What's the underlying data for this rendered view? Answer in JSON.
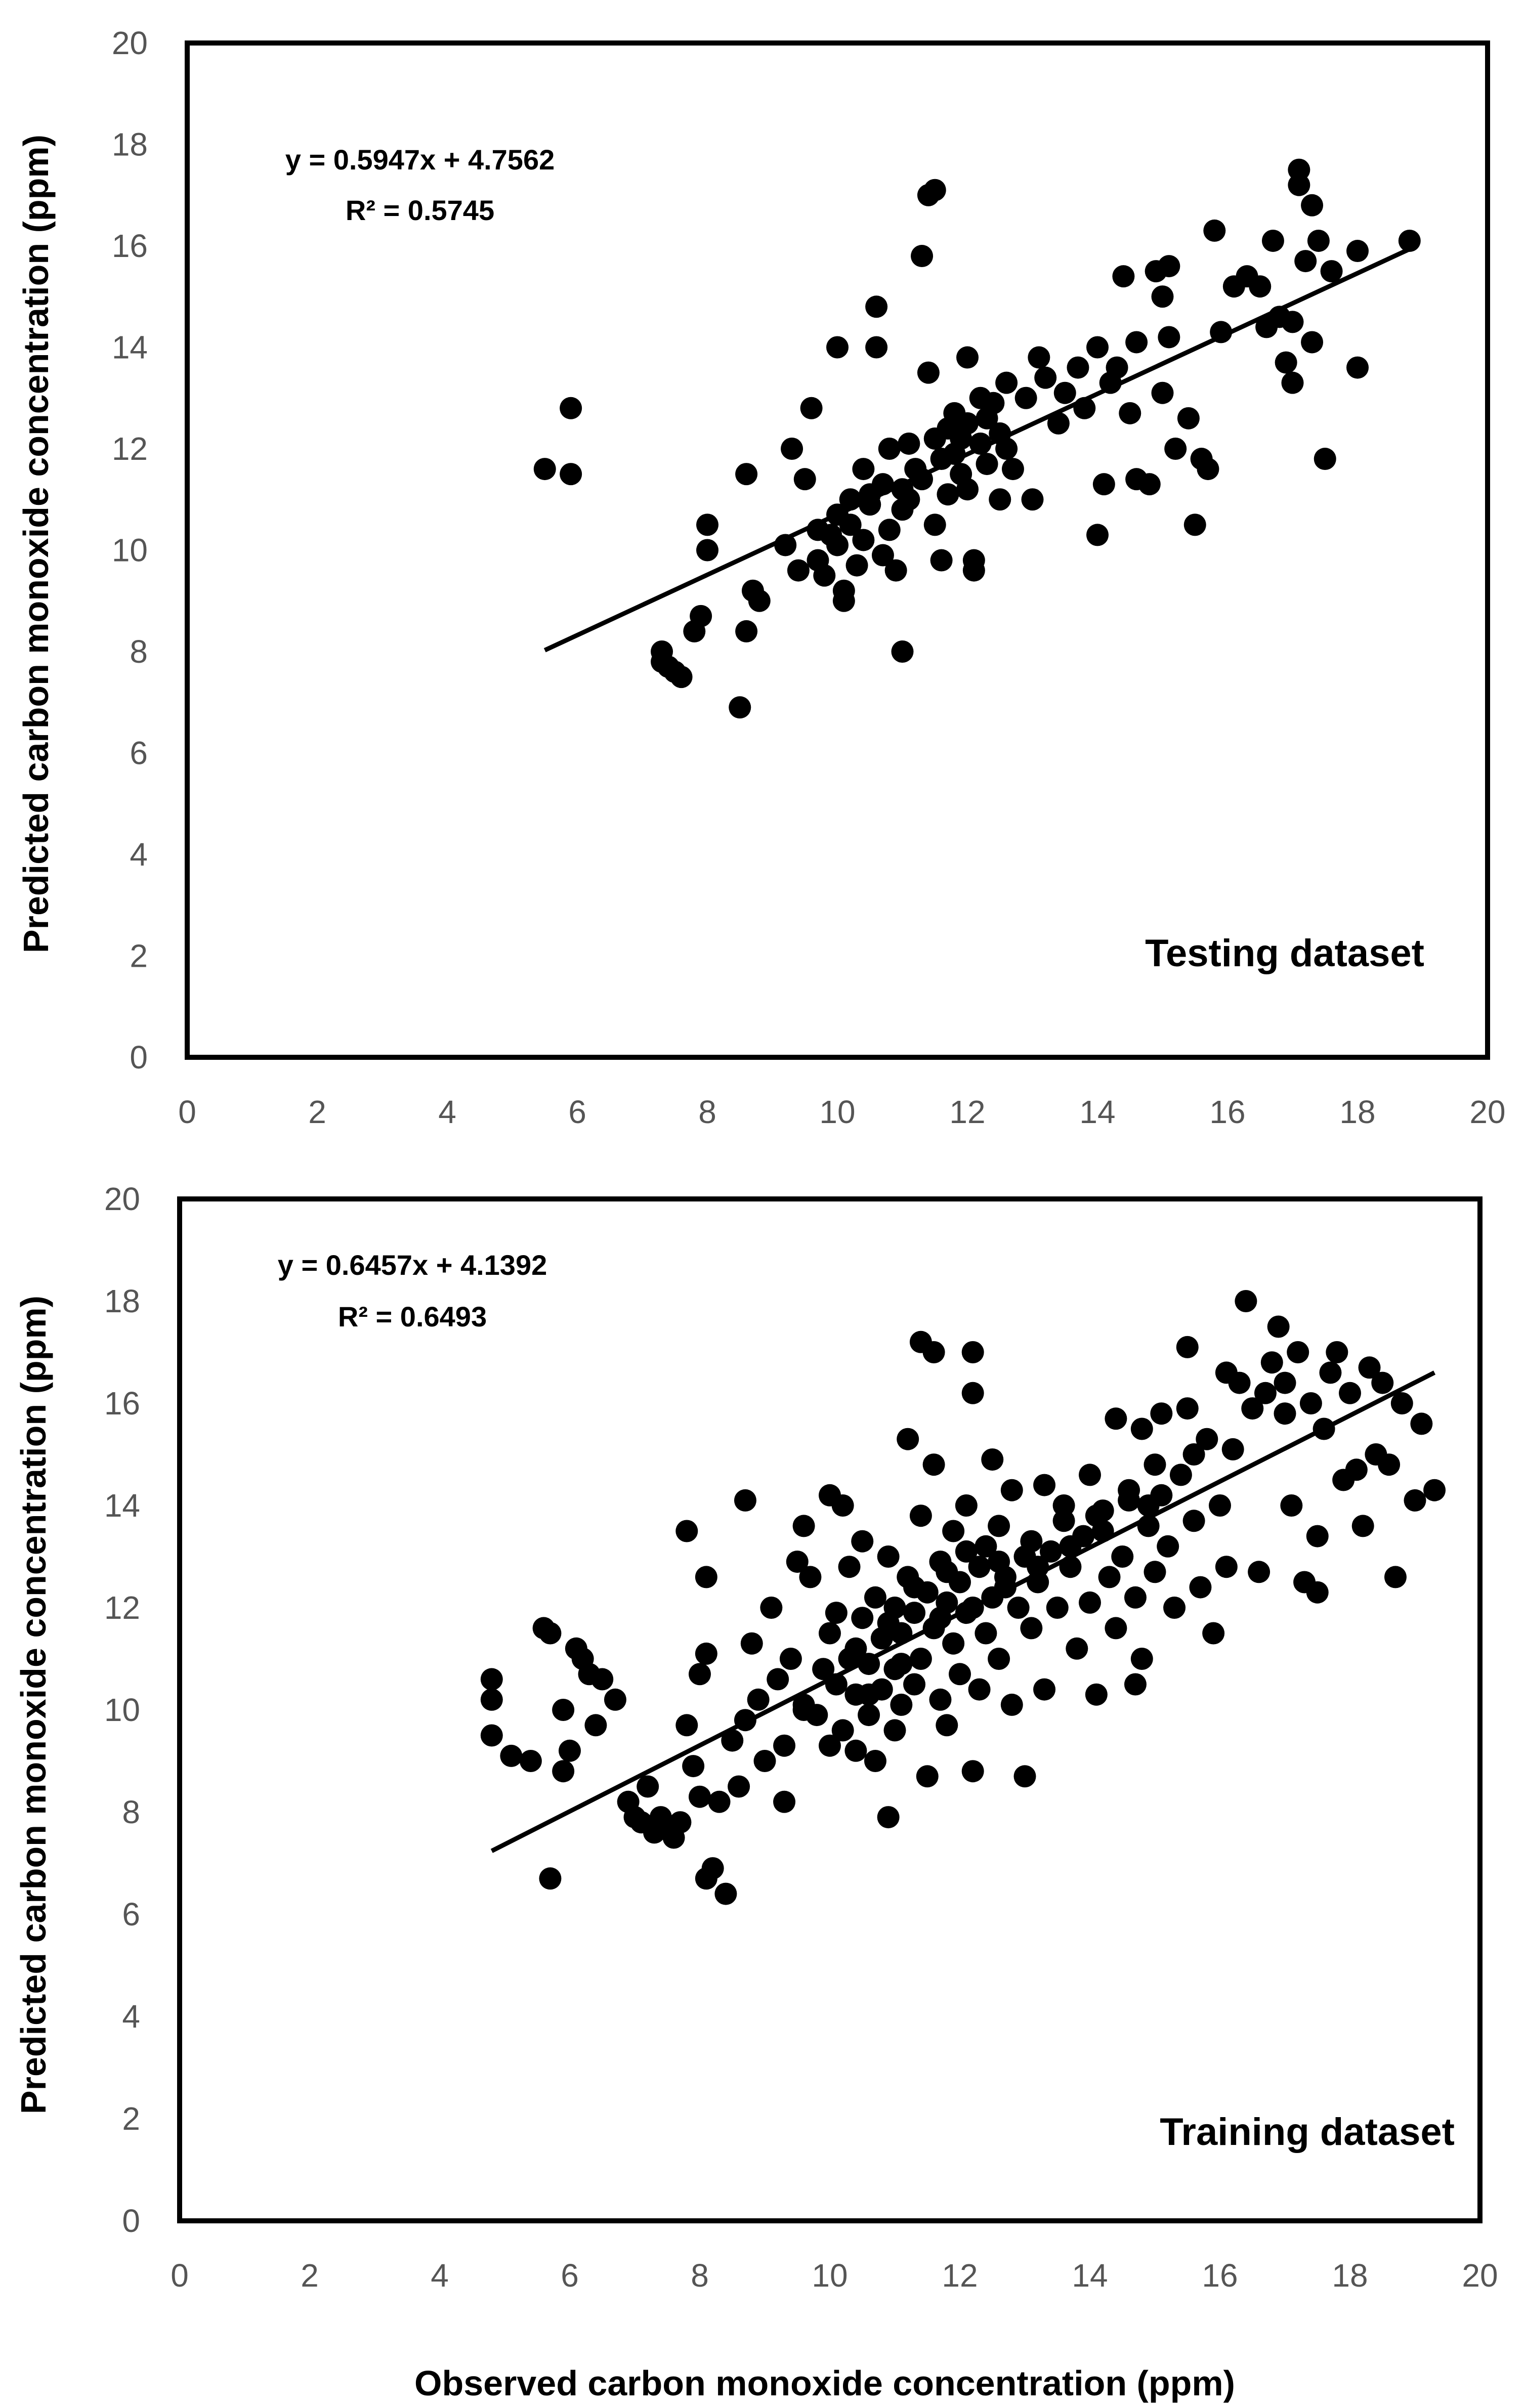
{
  "chart_data": [
    {
      "type": "scatter",
      "title": "",
      "dataset_label": "Testing dataset",
      "xlabel": "",
      "ylabel": "Predicted carbon monoxide concentration (ppm)",
      "xlim": [
        0,
        20
      ],
      "ylim": [
        0,
        20
      ],
      "x_ticks": [
        "0",
        "2",
        "4",
        "6",
        "8",
        "10",
        "12",
        "14",
        "16",
        "18",
        "20"
      ],
      "y_ticks": [
        "0",
        "2",
        "4",
        "6",
        "8",
        "10",
        "12",
        "14",
        "16",
        "18",
        "20"
      ],
      "trendline": {
        "slope": 0.5947,
        "intercept": 4.7562,
        "x_range": [
          5.5,
          18.8
        ]
      },
      "equation": "y = 0.5947x + 4.7562",
      "r2": "R² = 0.5745",
      "points": [
        [
          5.5,
          11.6
        ],
        [
          5.9,
          12.8
        ],
        [
          5.9,
          11.5
        ],
        [
          7.3,
          8.0
        ],
        [
          7.3,
          7.8
        ],
        [
          7.4,
          7.7
        ],
        [
          7.5,
          7.6
        ],
        [
          7.6,
          7.5
        ],
        [
          7.8,
          8.4
        ],
        [
          7.9,
          8.7
        ],
        [
          8.0,
          10.5
        ],
        [
          8.0,
          10.0
        ],
        [
          8.5,
          6.9
        ],
        [
          8.6,
          8.4
        ],
        [
          8.6,
          11.5
        ],
        [
          8.7,
          9.2
        ],
        [
          8.8,
          9.0
        ],
        [
          9.2,
          10.1
        ],
        [
          9.3,
          12.0
        ],
        [
          9.4,
          9.6
        ],
        [
          9.5,
          11.4
        ],
        [
          9.6,
          12.8
        ],
        [
          9.7,
          9.8
        ],
        [
          9.7,
          10.4
        ],
        [
          9.8,
          9.5
        ],
        [
          9.9,
          10.3
        ],
        [
          10.0,
          14.0
        ],
        [
          10.0,
          10.7
        ],
        [
          10.0,
          10.1
        ],
        [
          10.1,
          9.2
        ],
        [
          10.1,
          9.0
        ],
        [
          10.2,
          11.0
        ],
        [
          10.2,
          10.5
        ],
        [
          10.3,
          9.7
        ],
        [
          10.4,
          11.6
        ],
        [
          10.4,
          10.2
        ],
        [
          10.5,
          10.9
        ],
        [
          10.5,
          11.1
        ],
        [
          10.6,
          14.8
        ],
        [
          10.6,
          14.0
        ],
        [
          10.7,
          11.3
        ],
        [
          10.7,
          9.9
        ],
        [
          10.8,
          12.0
        ],
        [
          10.8,
          10.4
        ],
        [
          10.9,
          9.6
        ],
        [
          11.0,
          8.0
        ],
        [
          11.0,
          11.2
        ],
        [
          11.0,
          10.8
        ],
        [
          11.1,
          12.1
        ],
        [
          11.1,
          11.0
        ],
        [
          11.2,
          11.6
        ],
        [
          11.3,
          15.8
        ],
        [
          11.3,
          11.4
        ],
        [
          11.4,
          17.0
        ],
        [
          11.4,
          13.5
        ],
        [
          11.5,
          17.1
        ],
        [
          11.5,
          12.2
        ],
        [
          11.5,
          10.5
        ],
        [
          11.6,
          9.8
        ],
        [
          11.6,
          11.8
        ],
        [
          11.7,
          12.4
        ],
        [
          11.7,
          11.1
        ],
        [
          11.8,
          12.7
        ],
        [
          11.8,
          11.9
        ],
        [
          11.9,
          12.2
        ],
        [
          11.9,
          11.5
        ],
        [
          12.0,
          13.8
        ],
        [
          12.0,
          12.5
        ],
        [
          12.0,
          11.2
        ],
        [
          12.1,
          9.6
        ],
        [
          12.1,
          9.8
        ],
        [
          12.2,
          13.0
        ],
        [
          12.2,
          12.1
        ],
        [
          12.3,
          12.6
        ],
        [
          12.3,
          11.7
        ],
        [
          12.4,
          12.9
        ],
        [
          12.5,
          12.3
        ],
        [
          12.5,
          11.0
        ],
        [
          12.6,
          13.3
        ],
        [
          12.6,
          12.0
        ],
        [
          12.7,
          11.6
        ],
        [
          12.9,
          13.0
        ],
        [
          13.0,
          11.0
        ],
        [
          13.1,
          13.8
        ],
        [
          13.2,
          13.4
        ],
        [
          13.4,
          12.5
        ],
        [
          13.5,
          13.1
        ],
        [
          13.7,
          13.6
        ],
        [
          13.8,
          12.8
        ],
        [
          14.0,
          14.0
        ],
        [
          14.0,
          10.3
        ],
        [
          14.1,
          11.3
        ],
        [
          14.2,
          13.3
        ],
        [
          14.3,
          13.6
        ],
        [
          14.4,
          15.4
        ],
        [
          14.5,
          12.7
        ],
        [
          14.6,
          14.1
        ],
        [
          14.6,
          11.4
        ],
        [
          14.8,
          11.3
        ],
        [
          14.9,
          15.5
        ],
        [
          15.0,
          15.0
        ],
        [
          15.0,
          13.1
        ],
        [
          15.1,
          15.6
        ],
        [
          15.1,
          14.2
        ],
        [
          15.2,
          12.0
        ],
        [
          15.4,
          12.6
        ],
        [
          15.5,
          10.5
        ],
        [
          15.6,
          11.8
        ],
        [
          15.7,
          11.6
        ],
        [
          15.8,
          16.3
        ],
        [
          15.9,
          14.3
        ],
        [
          16.1,
          15.2
        ],
        [
          16.3,
          15.4
        ],
        [
          16.5,
          15.2
        ],
        [
          16.6,
          14.4
        ],
        [
          16.7,
          16.1
        ],
        [
          16.8,
          14.6
        ],
        [
          16.9,
          13.7
        ],
        [
          17.0,
          14.5
        ],
        [
          17.0,
          13.3
        ],
        [
          17.1,
          17.5
        ],
        [
          17.1,
          17.2
        ],
        [
          17.2,
          15.7
        ],
        [
          17.3,
          16.8
        ],
        [
          17.3,
          14.1
        ],
        [
          17.4,
          16.1
        ],
        [
          17.5,
          11.8
        ],
        [
          17.6,
          15.5
        ],
        [
          18.0,
          15.9
        ],
        [
          18.0,
          13.6
        ],
        [
          18.8,
          16.1
        ]
      ]
    },
    {
      "type": "scatter",
      "title": "",
      "dataset_label": "Training dataset",
      "xlabel": "Observed carbon monoxide concentration (ppm)",
      "ylabel": "Predicted carbon monoxide concentration (ppm)",
      "xlim": [
        0,
        20
      ],
      "ylim": [
        0,
        20
      ],
      "x_ticks": [
        "0",
        "2",
        "4",
        "6",
        "8",
        "10",
        "12",
        "14",
        "16",
        "18",
        "20"
      ],
      "y_ticks": [
        "0",
        "2",
        "4",
        "6",
        "8",
        "10",
        "12",
        "14",
        "16",
        "18",
        "20"
      ],
      "trendline": {
        "slope": 0.6457,
        "intercept": 4.1392,
        "x_range": [
          4.8,
          19.3
        ]
      },
      "equation": "y = 0.6457x + 4.1392",
      "r2": "R² = 0.6493",
      "points": [
        [
          4.8,
          10.6
        ],
        [
          4.8,
          10.2
        ],
        [
          4.8,
          9.5
        ],
        [
          5.1,
          9.1
        ],
        [
          5.4,
          9.0
        ],
        [
          5.6,
          11.6
        ],
        [
          5.7,
          11.5
        ],
        [
          5.7,
          6.7
        ],
        [
          5.9,
          10.0
        ],
        [
          5.9,
          8.8
        ],
        [
          6.0,
          9.2
        ],
        [
          6.1,
          11.2
        ],
        [
          6.2,
          11.0
        ],
        [
          6.3,
          10.7
        ],
        [
          6.4,
          9.7
        ],
        [
          6.5,
          10.6
        ],
        [
          6.7,
          10.2
        ],
        [
          6.9,
          8.2
        ],
        [
          7.0,
          7.9
        ],
        [
          7.1,
          7.8
        ],
        [
          7.2,
          8.5
        ],
        [
          7.3,
          7.6
        ],
        [
          7.4,
          7.9
        ],
        [
          7.5,
          7.7
        ],
        [
          7.6,
          7.5
        ],
        [
          7.7,
          7.8
        ],
        [
          7.8,
          13.5
        ],
        [
          7.8,
          9.7
        ],
        [
          7.9,
          8.9
        ],
        [
          8.0,
          10.7
        ],
        [
          8.0,
          8.3
        ],
        [
          8.1,
          11.1
        ],
        [
          8.1,
          12.6
        ],
        [
          8.1,
          6.7
        ],
        [
          8.2,
          6.9
        ],
        [
          8.3,
          8.2
        ],
        [
          8.4,
          6.4
        ],
        [
          8.5,
          9.4
        ],
        [
          8.6,
          8.5
        ],
        [
          8.7,
          14.1
        ],
        [
          8.7,
          9.8
        ],
        [
          8.8,
          11.3
        ],
        [
          8.9,
          10.2
        ],
        [
          9.0,
          9.0
        ],
        [
          9.1,
          12.0
        ],
        [
          9.2,
          10.6
        ],
        [
          9.3,
          9.3
        ],
        [
          9.3,
          8.2
        ],
        [
          9.4,
          11.0
        ],
        [
          9.5,
          12.9
        ],
        [
          9.6,
          13.6
        ],
        [
          9.6,
          10.1
        ],
        [
          9.7,
          12.6
        ],
        [
          9.8,
          9.9
        ],
        [
          9.9,
          10.8
        ],
        [
          10.0,
          14.2
        ],
        [
          10.0,
          11.5
        ],
        [
          10.0,
          9.3
        ],
        [
          10.1,
          11.9
        ],
        [
          10.1,
          10.5
        ],
        [
          10.2,
          14.0
        ],
        [
          10.2,
          9.6
        ],
        [
          10.3,
          12.8
        ],
        [
          10.3,
          11.0
        ],
        [
          10.4,
          10.3
        ],
        [
          10.4,
          9.2
        ],
        [
          10.5,
          13.3
        ],
        [
          10.5,
          11.8
        ],
        [
          10.6,
          10.9
        ],
        [
          10.6,
          9.9
        ],
        [
          10.7,
          12.2
        ],
        [
          10.7,
          9.0
        ],
        [
          10.8,
          11.4
        ],
        [
          10.8,
          10.4
        ],
        [
          10.9,
          7.9
        ],
        [
          10.9,
          13.0
        ],
        [
          11.0,
          12.0
        ],
        [
          11.0,
          10.8
        ],
        [
          11.0,
          9.6
        ],
        [
          11.1,
          11.5
        ],
        [
          11.1,
          10.1
        ],
        [
          11.2,
          12.6
        ],
        [
          11.2,
          15.3
        ],
        [
          11.3,
          11.9
        ],
        [
          11.3,
          10.5
        ],
        [
          11.4,
          17.2
        ],
        [
          11.4,
          13.8
        ],
        [
          11.4,
          11.0
        ],
        [
          11.5,
          12.3
        ],
        [
          11.5,
          8.7
        ],
        [
          11.6,
          17.0
        ],
        [
          11.6,
          14.8
        ],
        [
          11.6,
          11.6
        ],
        [
          11.7,
          12.9
        ],
        [
          11.7,
          10.2
        ],
        [
          11.8,
          12.1
        ],
        [
          11.8,
          9.7
        ],
        [
          11.9,
          13.5
        ],
        [
          11.9,
          11.3
        ],
        [
          12.0,
          12.5
        ],
        [
          12.0,
          10.7
        ],
        [
          12.1,
          14.0
        ],
        [
          12.1,
          11.9
        ],
        [
          12.2,
          17.0
        ],
        [
          12.2,
          16.2
        ],
        [
          12.2,
          8.8
        ],
        [
          12.3,
          12.8
        ],
        [
          12.3,
          10.4
        ],
        [
          12.4,
          13.2
        ],
        [
          12.4,
          11.5
        ],
        [
          12.5,
          12.2
        ],
        [
          12.5,
          14.9
        ],
        [
          12.6,
          11.0
        ],
        [
          12.6,
          13.6
        ],
        [
          12.7,
          12.6
        ],
        [
          12.8,
          14.3
        ],
        [
          12.8,
          10.1
        ],
        [
          12.9,
          12.0
        ],
        [
          13.0,
          13.0
        ],
        [
          13.0,
          8.7
        ],
        [
          13.1,
          11.6
        ],
        [
          13.2,
          12.5
        ],
        [
          13.3,
          14.4
        ],
        [
          13.3,
          10.4
        ],
        [
          13.4,
          13.1
        ],
        [
          13.5,
          12.0
        ],
        [
          13.6,
          14.0
        ],
        [
          13.7,
          12.8
        ],
        [
          13.8,
          11.2
        ],
        [
          13.9,
          13.4
        ],
        [
          14.0,
          14.6
        ],
        [
          14.0,
          12.1
        ],
        [
          14.1,
          10.3
        ],
        [
          14.2,
          13.9
        ],
        [
          14.3,
          12.6
        ],
        [
          14.4,
          15.7
        ],
        [
          14.4,
          11.6
        ],
        [
          14.5,
          13.0
        ],
        [
          14.6,
          14.3
        ],
        [
          14.7,
          12.2
        ],
        [
          14.7,
          10.5
        ],
        [
          14.8,
          15.5
        ],
        [
          14.8,
          11.0
        ],
        [
          14.9,
          13.6
        ],
        [
          15.0,
          14.8
        ],
        [
          15.0,
          12.7
        ],
        [
          15.1,
          15.8
        ],
        [
          15.2,
          13.2
        ],
        [
          15.3,
          12.0
        ],
        [
          15.4,
          14.6
        ],
        [
          15.5,
          15.9
        ],
        [
          15.5,
          17.1
        ],
        [
          15.6,
          13.7
        ],
        [
          15.7,
          12.4
        ],
        [
          15.8,
          15.3
        ],
        [
          15.9,
          11.5
        ],
        [
          16.0,
          14.0
        ],
        [
          16.1,
          16.6
        ],
        [
          16.1,
          12.8
        ],
        [
          16.2,
          15.1
        ],
        [
          16.3,
          16.4
        ],
        [
          16.4,
          18.0
        ],
        [
          16.5,
          15.9
        ],
        [
          16.6,
          12.7
        ],
        [
          16.7,
          16.2
        ],
        [
          16.8,
          16.8
        ],
        [
          16.9,
          17.5
        ],
        [
          17.0,
          16.4
        ],
        [
          17.0,
          15.8
        ],
        [
          17.1,
          14.0
        ],
        [
          17.2,
          17.0
        ],
        [
          17.3,
          12.5
        ],
        [
          17.4,
          16.0
        ],
        [
          17.5,
          13.4
        ],
        [
          17.5,
          12.3
        ],
        [
          17.6,
          15.5
        ],
        [
          17.7,
          16.6
        ],
        [
          17.8,
          17.0
        ],
        [
          17.9,
          14.5
        ],
        [
          18.0,
          16.2
        ],
        [
          18.1,
          14.7
        ],
        [
          18.2,
          13.6
        ],
        [
          18.3,
          16.7
        ],
        [
          18.4,
          15.0
        ],
        [
          18.5,
          16.4
        ],
        [
          18.6,
          14.8
        ],
        [
          18.7,
          12.6
        ],
        [
          18.8,
          16.0
        ],
        [
          19.0,
          14.1
        ],
        [
          19.1,
          15.6
        ],
        [
          19.3,
          14.3
        ],
        [
          9.6,
          10.0
        ],
        [
          10.4,
          11.2
        ],
        [
          10.9,
          11.7
        ],
        [
          11.3,
          12.4
        ],
        [
          11.8,
          12.7
        ],
        [
          12.1,
          13.1
        ],
        [
          12.6,
          12.9
        ],
        [
          13.1,
          13.3
        ],
        [
          13.6,
          13.7
        ],
        [
          14.1,
          13.8
        ],
        [
          14.6,
          14.1
        ],
        [
          15.1,
          14.2
        ],
        [
          15.6,
          15.0
        ],
        [
          10.6,
          10.3
        ],
        [
          11.1,
          10.9
        ],
        [
          11.7,
          11.8
        ],
        [
          12.2,
          12.0
        ],
        [
          12.7,
          12.4
        ],
        [
          13.2,
          12.8
        ],
        [
          13.7,
          13.2
        ],
        [
          14.2,
          13.5
        ],
        [
          14.9,
          14.0
        ]
      ]
    }
  ]
}
